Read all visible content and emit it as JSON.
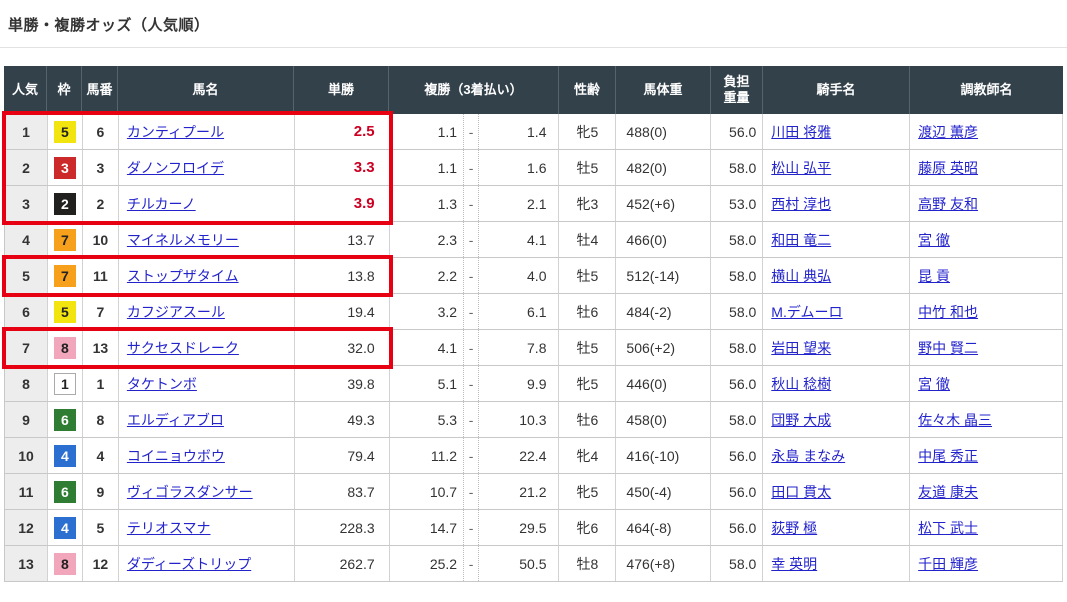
{
  "page": {
    "title": "単勝・複勝オッズ（人気順）"
  },
  "colors": {
    "header_bg": "#33414b",
    "link": "#2323cc",
    "hot_odds": "#cc0022",
    "highlight": "#e60012"
  },
  "table": {
    "headers": {
      "rank": "人気",
      "frame": "枠",
      "number": "馬番",
      "name": "馬名",
      "win": "単勝",
      "place": "複勝（3着払い）",
      "sex_age": "性齢",
      "weight": "馬体重",
      "carried": "負担重量",
      "jockey": "騎手名",
      "trainer": "調教師名"
    },
    "place_separator": "-",
    "frame_colors": {
      "1": {
        "bg": "#ffffff",
        "fg": "#222222",
        "border": "#aaaaaa"
      },
      "2": {
        "bg": "#221f1f",
        "fg": "#ffffff"
      },
      "3": {
        "bg": "#cc2a2a",
        "fg": "#ffffff"
      },
      "4": {
        "bg": "#2b6fd0",
        "fg": "#ffffff"
      },
      "5": {
        "bg": "#f2e40e",
        "fg": "#222222"
      },
      "6": {
        "bg": "#2e7d32",
        "fg": "#ffffff"
      },
      "7": {
        "bg": "#f6a01c",
        "fg": "#222222"
      },
      "8": {
        "bg": "#f2a6bb",
        "fg": "#222222"
      }
    },
    "rows": [
      {
        "rank": "1",
        "frame": "5",
        "number": "6",
        "name": "カンティプール",
        "win": "2.5",
        "win_hot": true,
        "place_low": "1.1",
        "place_high": "1.4",
        "sex_age": "牝5",
        "weight": "488(0)",
        "carried": "56.0",
        "jockey": "川田 将雅",
        "trainer": "渡辺 薫彦"
      },
      {
        "rank": "2",
        "frame": "3",
        "number": "3",
        "name": "ダノンフロイデ",
        "win": "3.3",
        "win_hot": true,
        "place_low": "1.1",
        "place_high": "1.6",
        "sex_age": "牡5",
        "weight": "482(0)",
        "carried": "58.0",
        "jockey": "松山 弘平",
        "trainer": "藤原 英昭"
      },
      {
        "rank": "3",
        "frame": "2",
        "number": "2",
        "name": "チルカーノ",
        "win": "3.9",
        "win_hot": true,
        "place_low": "1.3",
        "place_high": "2.1",
        "sex_age": "牝3",
        "weight": "452(+6)",
        "carried": "53.0",
        "jockey": "西村 淳也",
        "trainer": "高野 友和"
      },
      {
        "rank": "4",
        "frame": "7",
        "number": "10",
        "name": "マイネルメモリー",
        "win": "13.7",
        "win_hot": false,
        "place_low": "2.3",
        "place_high": "4.1",
        "sex_age": "牡4",
        "weight": "466(0)",
        "carried": "58.0",
        "jockey": "和田 竜二",
        "trainer": "宮 徹"
      },
      {
        "rank": "5",
        "frame": "7",
        "number": "11",
        "name": "ストップザタイム",
        "win": "13.8",
        "win_hot": false,
        "place_low": "2.2",
        "place_high": "4.0",
        "sex_age": "牡5",
        "weight": "512(-14)",
        "carried": "58.0",
        "jockey": "横山 典弘",
        "trainer": "昆 貢"
      },
      {
        "rank": "6",
        "frame": "5",
        "number": "7",
        "name": "カフジアスール",
        "win": "19.4",
        "win_hot": false,
        "place_low": "3.2",
        "place_high": "6.1",
        "sex_age": "牡6",
        "weight": "484(-2)",
        "carried": "58.0",
        "jockey": "M.デムーロ",
        "trainer": "中竹 和也"
      },
      {
        "rank": "7",
        "frame": "8",
        "number": "13",
        "name": "サクセスドレーク",
        "win": "32.0",
        "win_hot": false,
        "place_low": "4.1",
        "place_high": "7.8",
        "sex_age": "牡5",
        "weight": "506(+2)",
        "carried": "58.0",
        "jockey": "岩田 望来",
        "trainer": "野中 賢二"
      },
      {
        "rank": "8",
        "frame": "1",
        "number": "1",
        "name": "タケトンボ",
        "win": "39.8",
        "win_hot": false,
        "place_low": "5.1",
        "place_high": "9.9",
        "sex_age": "牝5",
        "weight": "446(0)",
        "carried": "56.0",
        "jockey": "秋山 稔樹",
        "trainer": "宮 徹"
      },
      {
        "rank": "9",
        "frame": "6",
        "number": "8",
        "name": "エルディアブロ",
        "win": "49.3",
        "win_hot": false,
        "place_low": "5.3",
        "place_high": "10.3",
        "sex_age": "牡6",
        "weight": "458(0)",
        "carried": "58.0",
        "jockey": "団野 大成",
        "trainer": "佐々木 晶三"
      },
      {
        "rank": "10",
        "frame": "4",
        "number": "4",
        "name": "コイニョウボウ",
        "win": "79.4",
        "win_hot": false,
        "place_low": "11.2",
        "place_high": "22.4",
        "sex_age": "牝4",
        "weight": "416(-10)",
        "carried": "56.0",
        "jockey": "永島 まなみ",
        "trainer": "中尾 秀正"
      },
      {
        "rank": "11",
        "frame": "6",
        "number": "9",
        "name": "ヴィゴラスダンサー",
        "win": "83.7",
        "win_hot": false,
        "place_low": "10.7",
        "place_high": "21.2",
        "sex_age": "牝5",
        "weight": "450(-4)",
        "carried": "56.0",
        "jockey": "田口 貫太",
        "trainer": "友道 康夫"
      },
      {
        "rank": "12",
        "frame": "4",
        "number": "5",
        "name": "テリオスマナ",
        "win": "228.3",
        "win_hot": false,
        "place_low": "14.7",
        "place_high": "29.5",
        "sex_age": "牝6",
        "weight": "464(-8)",
        "carried": "56.0",
        "jockey": "荻野 極",
        "trainer": "松下 武士"
      },
      {
        "rank": "13",
        "frame": "8",
        "number": "12",
        "name": "ダディーズトリップ",
        "win": "262.7",
        "win_hot": false,
        "place_low": "25.2",
        "place_high": "50.5",
        "sex_age": "牡8",
        "weight": "476(+8)",
        "carried": "58.0",
        "jockey": "幸 英明",
        "trainer": "千田 輝彦"
      }
    ]
  },
  "highlight": {
    "color": "#e60012",
    "ranges": [
      [
        1,
        3
      ],
      [
        5,
        5
      ],
      [
        7,
        7
      ]
    ]
  }
}
